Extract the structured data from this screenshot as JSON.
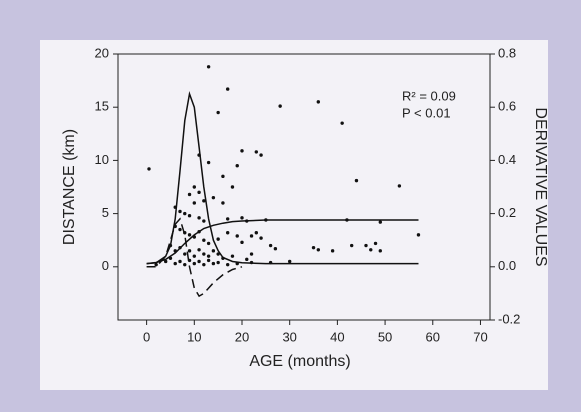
{
  "chart_data": {
    "type": "scatter",
    "xlabel": "AGE (months)",
    "ylabel": "DISTANCE (km)",
    "y2label": "DERIVATIVE VALUES",
    "annotations": [
      "R² = 0.09",
      "P < 0.01"
    ],
    "xlim": [
      -6,
      72
    ],
    "xticks": [
      0,
      10,
      20,
      30,
      40,
      50,
      60,
      70
    ],
    "ylim": [
      -5,
      20
    ],
    "yticks": [
      0,
      5,
      10,
      15,
      20
    ],
    "y2lim": [
      -0.2,
      0.8
    ],
    "y2ticks": [
      -0.2,
      {
        "value": 0,
        "label": "0.0"
      },
      0.2,
      0.4,
      0.6,
      0.8
    ],
    "grid": false,
    "series": [
      {
        "type": "scatter",
        "color": "#111111",
        "axis": "y",
        "x": [
          0.5,
          13,
          17,
          15,
          28,
          36,
          41,
          11,
          20,
          23,
          24,
          19,
          13,
          16,
          18,
          44,
          53,
          10,
          11,
          12,
          9,
          10,
          14,
          16,
          6,
          7,
          8,
          9,
          11,
          12,
          17,
          20,
          21,
          25,
          42,
          49,
          57,
          6,
          7,
          8,
          9,
          10,
          11,
          12,
          13,
          15,
          17,
          19,
          20,
          22,
          23,
          24,
          26,
          27,
          35,
          36,
          39,
          43,
          46,
          47,
          48,
          49,
          5,
          6,
          7,
          8,
          9,
          10,
          11,
          12,
          13,
          14,
          15,
          16,
          18,
          21,
          22,
          4,
          5,
          6,
          7,
          8,
          9,
          10,
          11,
          12,
          13,
          14,
          15,
          17,
          19,
          22,
          26,
          30,
          2
        ],
        "values": [
          9.2,
          18.8,
          16.7,
          14.5,
          15.1,
          15.5,
          13.5,
          10.5,
          10.9,
          10.8,
          10.5,
          9.5,
          9.8,
          8.5,
          7.5,
          8.1,
          7.6,
          7.5,
          7.0,
          6.2,
          6.8,
          6.0,
          6.5,
          6.0,
          5.6,
          5.2,
          5.0,
          4.8,
          4.6,
          4.3,
          4.5,
          4.6,
          4.3,
          4.4,
          4.4,
          4.2,
          3.0,
          3.8,
          3.5,
          3.2,
          3.0,
          2.8,
          3.3,
          2.5,
          2.2,
          2.6,
          3.2,
          2.9,
          2.3,
          2.9,
          3.2,
          2.7,
          2.0,
          1.7,
          1.8,
          1.6,
          1.5,
          2.0,
          2.0,
          1.6,
          2.2,
          1.5,
          2.0,
          1.5,
          1.8,
          1.2,
          1.5,
          1.0,
          1.6,
          1.2,
          1.0,
          1.5,
          1.2,
          0.8,
          1.0,
          0.7,
          1.2,
          0.5,
          0.8,
          0.3,
          0.5,
          0.2,
          0.6,
          0.3,
          0.5,
          0.2,
          0.6,
          0.3,
          0.4,
          0.2,
          0.3,
          0.4,
          0.4,
          0.5,
          0.2
        ]
      },
      {
        "type": "line",
        "color": "#111111",
        "axis": "y",
        "dashed": false,
        "x": [
          0,
          2,
          4,
          6,
          8,
          10,
          12,
          14,
          16,
          18,
          20,
          25,
          30,
          40,
          50,
          57
        ],
        "values": [
          0.3,
          0.4,
          0.7,
          1.3,
          2.2,
          3.0,
          3.6,
          3.9,
          4.1,
          4.25,
          4.3,
          4.4,
          4.4,
          4.4,
          4.4,
          4.4
        ]
      },
      {
        "type": "line",
        "color": "#111111",
        "axis": "y2",
        "dashed": false,
        "x": [
          0,
          2,
          4,
          5,
          6,
          7,
          8,
          9,
          10,
          11,
          12,
          13,
          14,
          15,
          16,
          18,
          20,
          25,
          30,
          40,
          50,
          57
        ],
        "values": [
          0.012,
          0.015,
          0.04,
          0.08,
          0.18,
          0.36,
          0.55,
          0.65,
          0.6,
          0.45,
          0.3,
          0.18,
          0.1,
          0.06,
          0.035,
          0.02,
          0.015,
          0.012,
          0.012,
          0.012,
          0.012,
          0.012
        ]
      },
      {
        "type": "line",
        "color": "#111111",
        "axis": "y2",
        "dashed": true,
        "x": [
          0,
          2,
          4,
          5,
          6,
          7,
          8,
          9,
          10,
          11,
          12,
          13,
          14,
          16,
          18,
          20
        ],
        "values": [
          0,
          0,
          0.04,
          0.1,
          0.16,
          0.18,
          0.12,
          0,
          -0.08,
          -0.11,
          -0.1,
          -0.08,
          -0.06,
          -0.03,
          -0.01,
          0
        ]
      }
    ]
  }
}
